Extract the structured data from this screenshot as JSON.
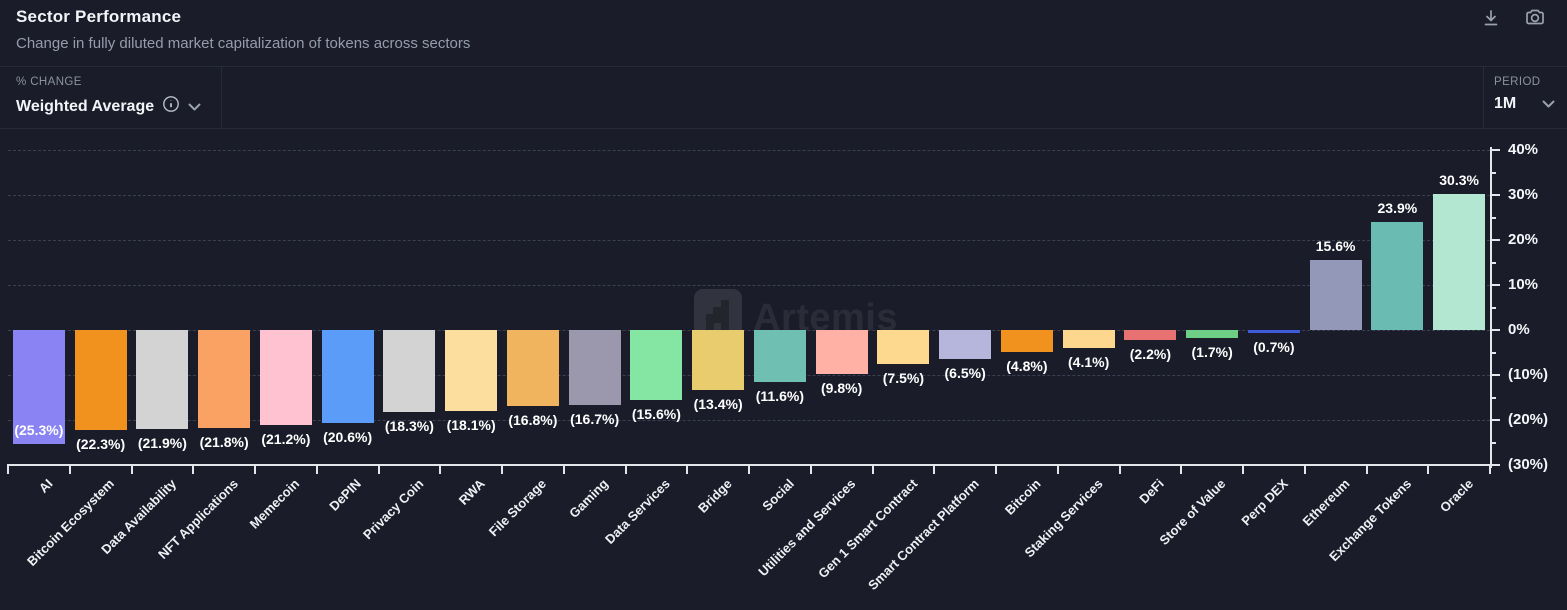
{
  "header": {
    "title": "Sector Performance",
    "subtitle": "Change in fully diluted market capitalization of tokens across sectors",
    "icons": [
      "download-icon",
      "camera-icon"
    ]
  },
  "filters": {
    "change_label": "% CHANGE",
    "change_value": "Weighted Average",
    "change_icons": [
      "info-icon",
      "chevron-down-icon"
    ],
    "period_label": "PERIOD",
    "period_value": "1M",
    "period_icons": [
      "chevron-down-icon"
    ]
  },
  "watermark": {
    "text": "Artemis",
    "icon": "artemis-logo-icon"
  },
  "colors": {
    "background": "#1a1d29",
    "border": "#272b39",
    "gridline": "#3a4050",
    "axis": "#e4e6ec",
    "muted_text": "#969cab",
    "bright_text": "#f2f4f8"
  },
  "chart_data": {
    "type": "bar",
    "title": "Sector Performance",
    "xlabel": "",
    "ylabel": "% Change",
    "ylim": [
      -30,
      40
    ],
    "grid": "horizontal dashed",
    "legend": "none",
    "y_axis_position": "right",
    "y_ticks": [
      {
        "value": 40,
        "label": "40%"
      },
      {
        "value": 30,
        "label": "30%"
      },
      {
        "value": 20,
        "label": "20%"
      },
      {
        "value": 10,
        "label": "10%"
      },
      {
        "value": 0,
        "label": "0%"
      },
      {
        "value": -10,
        "label": "(10%)"
      },
      {
        "value": -20,
        "label": "(20%)"
      },
      {
        "value": -30,
        "label": "(30%)"
      }
    ],
    "bars": [
      {
        "category": "AI",
        "value": -25.3,
        "label": "(25.3%)",
        "color": "#8983f4"
      },
      {
        "category": "Bitcoin Ecosystem",
        "value": -22.3,
        "label": "(22.3%)",
        "color": "#f1911e"
      },
      {
        "category": "Data Availability",
        "value": -21.9,
        "label": "(21.9%)",
        "color": "#d3d3d3"
      },
      {
        "category": "NFT Applications",
        "value": -21.8,
        "label": "(21.8%)",
        "color": "#f9a263"
      },
      {
        "category": "Memecoin",
        "value": -21.2,
        "label": "(21.2%)",
        "color": "#ffc2d1"
      },
      {
        "category": "DePIN",
        "value": -20.6,
        "label": "(20.6%)",
        "color": "#5a9cf8"
      },
      {
        "category": "Privacy Coin",
        "value": -18.3,
        "label": "(18.3%)",
        "color": "#d3d3d3"
      },
      {
        "category": "RWA",
        "value": -18.1,
        "label": "(18.1%)",
        "color": "#fcdf9e"
      },
      {
        "category": "File Storage",
        "value": -16.8,
        "label": "(16.8%)",
        "color": "#f0b45f"
      },
      {
        "category": "Gaming",
        "value": -16.7,
        "label": "(16.7%)",
        "color": "#9b97ad"
      },
      {
        "category": "Data Services",
        "value": -15.6,
        "label": "(15.6%)",
        "color": "#85e6a3"
      },
      {
        "category": "Bridge",
        "value": -13.4,
        "label": "(13.4%)",
        "color": "#e9cc6d"
      },
      {
        "category": "Social",
        "value": -11.6,
        "label": "(11.6%)",
        "color": "#6fc0b2"
      },
      {
        "category": "Utilities and Services",
        "value": -9.8,
        "label": "(9.8%)",
        "color": "#ffb1a5"
      },
      {
        "category": "Gen 1 Smart Contract",
        "value": -7.5,
        "label": "(7.5%)",
        "color": "#fdd98f"
      },
      {
        "category": "Smart Contract Platform",
        "value": -6.5,
        "label": "(6.5%)",
        "color": "#b6b6dd"
      },
      {
        "category": "Bitcoin",
        "value": -4.8,
        "label": "(4.8%)",
        "color": "#f1911e"
      },
      {
        "category": "Staking Services",
        "value": -4.1,
        "label": "(4.1%)",
        "color": "#fcd78d"
      },
      {
        "category": "DeFi",
        "value": -2.2,
        "label": "(2.2%)",
        "color": "#e87272"
      },
      {
        "category": "Store of Value",
        "value": -1.7,
        "label": "(1.7%)",
        "color": "#6fce85"
      },
      {
        "category": "Perp DEX",
        "value": -0.7,
        "label": "(0.7%)",
        "color": "#3e5cd8"
      },
      {
        "category": "Ethereum",
        "value": 15.6,
        "label": "15.6%",
        "color": "#9397b8"
      },
      {
        "category": "Exchange Tokens",
        "value": 23.9,
        "label": "23.9%",
        "color": "#6abcb2"
      },
      {
        "category": "Oracle",
        "value": 30.3,
        "label": "30.3%",
        "color": "#b4e7d1"
      }
    ]
  }
}
